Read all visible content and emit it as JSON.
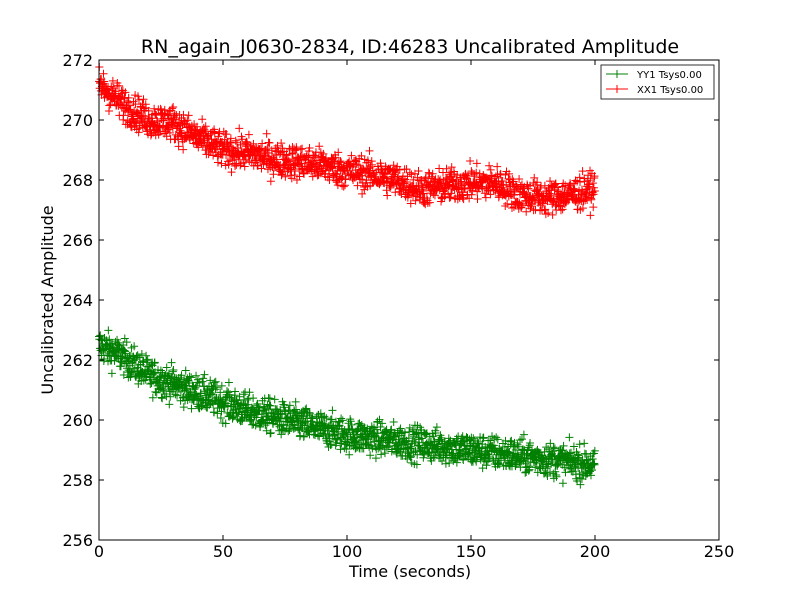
{
  "chart_data": {
    "type": "scatter",
    "title": "RN_again_J0630-2834, ID:46283 Uncalibrated Amplitude",
    "xlabel": "Time (seconds)",
    "ylabel": "Uncalibrated Amplitude",
    "xlim": [
      0,
      250
    ],
    "ylim": [
      256,
      272
    ],
    "xticks": [
      "0",
      "50",
      "100",
      "150",
      "200",
      "250"
    ],
    "yticks": [
      "256",
      "258",
      "260",
      "262",
      "264",
      "266",
      "268",
      "270",
      "272"
    ],
    "grid": false,
    "marker": "+",
    "legend": {
      "position": "top-right"
    },
    "series": [
      {
        "name": "YY1 Tsys0.00",
        "color": "#008000",
        "x": [
          0,
          10,
          20,
          30,
          40,
          50,
          60,
          70,
          80,
          90,
          100,
          110,
          120,
          130,
          140,
          150,
          160,
          170,
          180,
          190,
          200
        ],
        "y": [
          262.5,
          262.1,
          261.5,
          261.2,
          260.9,
          260.6,
          260.3,
          260.1,
          259.9,
          259.7,
          259.5,
          259.4,
          259.3,
          259.2,
          259.1,
          259.0,
          258.9,
          258.8,
          258.7,
          258.6,
          258.5
        ]
      },
      {
        "name": "XX1 Tsys0.00",
        "color": "#ff0000",
        "x": [
          0,
          10,
          20,
          30,
          40,
          50,
          60,
          70,
          80,
          90,
          100,
          110,
          120,
          130,
          140,
          150,
          160,
          170,
          180,
          190,
          200
        ],
        "y": [
          271.2,
          270.5,
          270.0,
          269.9,
          269.4,
          269.0,
          268.9,
          268.7,
          268.6,
          268.5,
          268.3,
          268.2,
          268.0,
          267.7,
          267.8,
          267.9,
          267.9,
          267.5,
          267.4,
          267.5,
          267.7
        ]
      }
    ]
  }
}
